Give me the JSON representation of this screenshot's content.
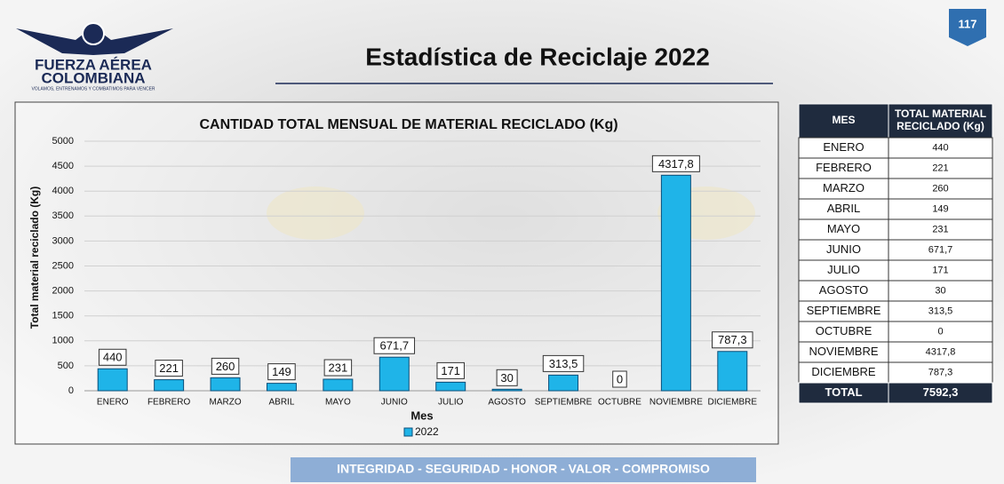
{
  "logo": {
    "line1": "FUERZA AÉREA",
    "line2": "COLOMBIANA",
    "motto": "VOLAMOS, ENTRENAMOS Y COMBATIMOS PARA VENCER"
  },
  "page_number": "117",
  "title": "Estadística de Reciclaje 2022",
  "chart_data": {
    "type": "bar",
    "title": "CANTIDAD TOTAL MENSUAL DE MATERIAL RECICLADO (Kg)",
    "x_label": "Mes",
    "y_label": "Total material reciclado (Kg)",
    "categories": [
      "ENERO",
      "FEBRERO",
      "MARZO",
      "ABRIL",
      "MAYO",
      "JUNIO",
      "JULIO",
      "AGOSTO",
      "SEPTIEMBRE",
      "OCTUBRE",
      "NOVIEMBRE",
      "DICIEMBRE"
    ],
    "series": [
      {
        "name": "2022",
        "color": "#1fb4e8",
        "values": [
          440,
          221,
          260,
          149,
          231,
          671.7,
          171,
          30,
          313.5,
          0,
          4317.8,
          787.3
        ],
        "value_labels": [
          "440",
          "221",
          "260",
          "149",
          "231",
          "671,7",
          "171",
          "30",
          "313,5",
          "0",
          "4317,8",
          "787,3"
        ]
      }
    ],
    "ylim": [
      0,
      5000
    ],
    "yticks": [
      0,
      500,
      1000,
      1500,
      2000,
      2500,
      3000,
      3500,
      4000,
      4500,
      5000
    ],
    "grid": true,
    "legend": "bottom"
  },
  "table": {
    "header": [
      "MES",
      "TOTAL MATERIAL RECICLADO (Kg)"
    ],
    "rows": [
      [
        "ENERO",
        "440"
      ],
      [
        "FEBRERO",
        "221"
      ],
      [
        "MARZO",
        "260"
      ],
      [
        "ABRIL",
        "149"
      ],
      [
        "MAYO",
        "231"
      ],
      [
        "JUNIO",
        "671,7"
      ],
      [
        "JULIO",
        "171"
      ],
      [
        "AGOSTO",
        "30"
      ],
      [
        "SEPTIEMBRE",
        "313,5"
      ],
      [
        "OCTUBRE",
        "0"
      ],
      [
        "NOVIEMBRE",
        "4317,8"
      ],
      [
        "DICIEMBRE",
        "787,3"
      ]
    ],
    "total": [
      "TOTAL",
      "7592,3"
    ]
  },
  "footer": "INTEGRIDAD - SEGURIDAD - HONOR - VALOR - COMPROMISO"
}
